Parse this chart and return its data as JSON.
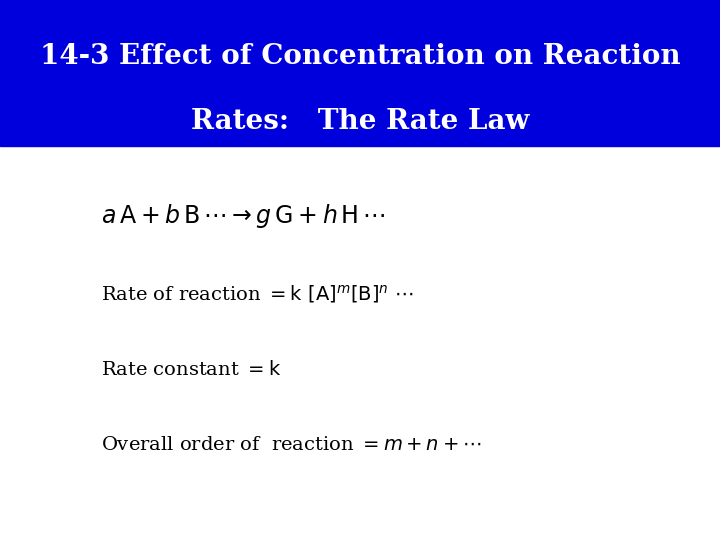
{
  "title_line1": "14-3 Effect of Concentration on Reaction",
  "title_line2": "Rates:   The Rate Law",
  "title_bg_color": "#0000DD",
  "title_text_color": "#FFFFFF",
  "bg_color": "#FFFFFF",
  "body_text_color": "#000000",
  "fig_width": 7.2,
  "fig_height": 5.4,
  "dpi": 100,
  "title_fontsize": 20,
  "body_fontsize": 14,
  "eq1_fontsize": 17
}
